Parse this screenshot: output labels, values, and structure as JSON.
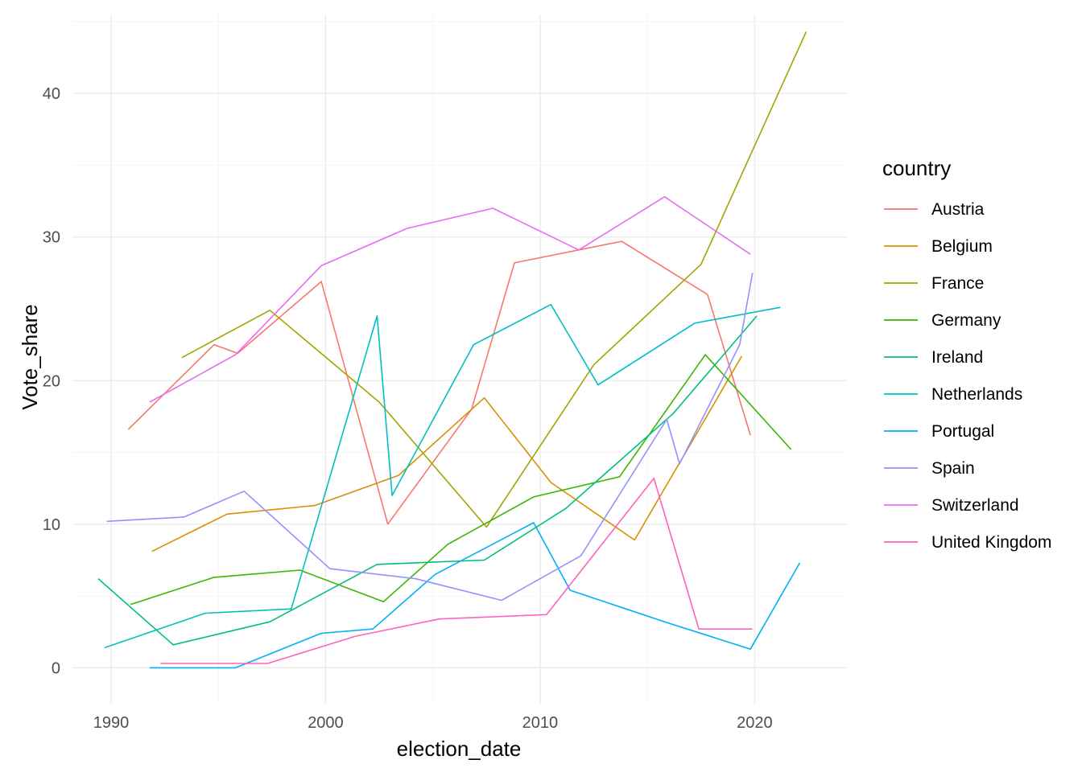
{
  "chart_data": {
    "type": "line",
    "xlabel": "election_date",
    "ylabel": "Vote_share",
    "xlim": [
      1988.2,
      2024.3
    ],
    "ylim": [
      -2.5,
      45.5
    ],
    "x_ticks": [
      1990,
      2000,
      2010,
      2020
    ],
    "x_tick_labels": [
      "1990",
      "2000",
      "2010",
      "2020"
    ],
    "y_ticks": [
      0,
      10,
      20,
      30,
      40
    ],
    "y_tick_labels": [
      "0",
      "10",
      "20",
      "30",
      "40"
    ],
    "grid": true,
    "legend": {
      "title": "country",
      "position": "right"
    },
    "series": [
      {
        "name": "Austria",
        "color": "#F8766D",
        "x": [
          1990.8,
          1994.8,
          1995.9,
          1999.8,
          2002.9,
          2006.8,
          2008.8,
          2013.8,
          2017.8,
          2019.8
        ],
        "y": [
          16.6,
          22.5,
          21.9,
          26.9,
          10.0,
          18.0,
          28.2,
          29.7,
          26.0,
          16.2
        ]
      },
      {
        "name": "Belgium",
        "color": "#D89000",
        "x": [
          1991.9,
          1995.4,
          1999.5,
          2003.4,
          2007.4,
          2010.5,
          2014.4,
          2019.4
        ],
        "y": [
          8.1,
          10.7,
          11.3,
          13.4,
          18.8,
          12.9,
          8.9,
          21.7
        ]
      },
      {
        "name": "France",
        "color": "#A3A500",
        "x": [
          1993.3,
          1997.4,
          2002.5,
          2007.5,
          2012.5,
          2017.5,
          2022.4
        ],
        "y": [
          21.6,
          24.9,
          18.5,
          9.8,
          21.1,
          28.1,
          44.3
        ]
      },
      {
        "name": "Germany",
        "color": "#39B600",
        "x": [
          1990.9,
          1994.8,
          1998.8,
          2002.7,
          2005.7,
          2009.7,
          2013.7,
          2017.7,
          2021.7
        ],
        "y": [
          4.4,
          6.3,
          6.8,
          4.6,
          8.6,
          11.9,
          13.3,
          21.8,
          15.2
        ]
      },
      {
        "name": "Ireland",
        "color": "#00BF7D",
        "x": [
          1989.4,
          1992.9,
          1997.4,
          2002.4,
          2007.4,
          2011.2,
          2016.2,
          2020.1
        ],
        "y": [
          6.2,
          1.6,
          3.2,
          7.2,
          7.5,
          11.1,
          17.7,
          24.5
        ]
      },
      {
        "name": "Netherlands",
        "color": "#00BFC4",
        "x": [
          1989.7,
          1994.4,
          1998.4,
          2002.4,
          2003.1,
          2006.9,
          2010.5,
          2012.7,
          2017.2,
          2021.2
        ],
        "y": [
          1.4,
          3.8,
          4.1,
          24.5,
          12.0,
          22.5,
          25.3,
          19.7,
          24.0,
          25.1
        ]
      },
      {
        "name": "Portugal",
        "color": "#00B0F6",
        "x": [
          1991.8,
          1995.8,
          1999.8,
          2002.2,
          2005.1,
          2009.7,
          2011.4,
          2015.8,
          2019.8,
          2022.1
        ],
        "y": [
          0.0,
          0.0,
          2.4,
          2.7,
          6.5,
          10.1,
          5.4,
          3.2,
          1.3,
          7.3
        ]
      },
      {
        "name": "Spain",
        "color": "#9590FF",
        "x": [
          1989.8,
          1993.4,
          1996.2,
          2000.2,
          2004.2,
          2008.2,
          2011.9,
          2015.9,
          2016.5,
          2019.3,
          2019.9
        ],
        "y": [
          10.2,
          10.5,
          12.3,
          6.9,
          6.2,
          4.7,
          7.8,
          17.3,
          14.2,
          22.5,
          27.5
        ]
      },
      {
        "name": "Switzerland",
        "color": "#E76BF3",
        "x": [
          1991.8,
          1995.8,
          1999.8,
          2003.8,
          2007.8,
          2011.8,
          2015.8,
          2019.8
        ],
        "y": [
          18.5,
          21.8,
          28.0,
          30.6,
          32.0,
          29.1,
          32.8,
          28.8
        ]
      },
      {
        "name": "United Kingdom",
        "color": "#FF62BC",
        "x": [
          1992.3,
          1997.3,
          2001.4,
          2005.3,
          2010.3,
          2015.3,
          2017.4,
          2019.9
        ],
        "y": [
          0.3,
          0.3,
          2.2,
          3.4,
          3.7,
          13.2,
          2.7,
          2.7
        ]
      }
    ]
  }
}
